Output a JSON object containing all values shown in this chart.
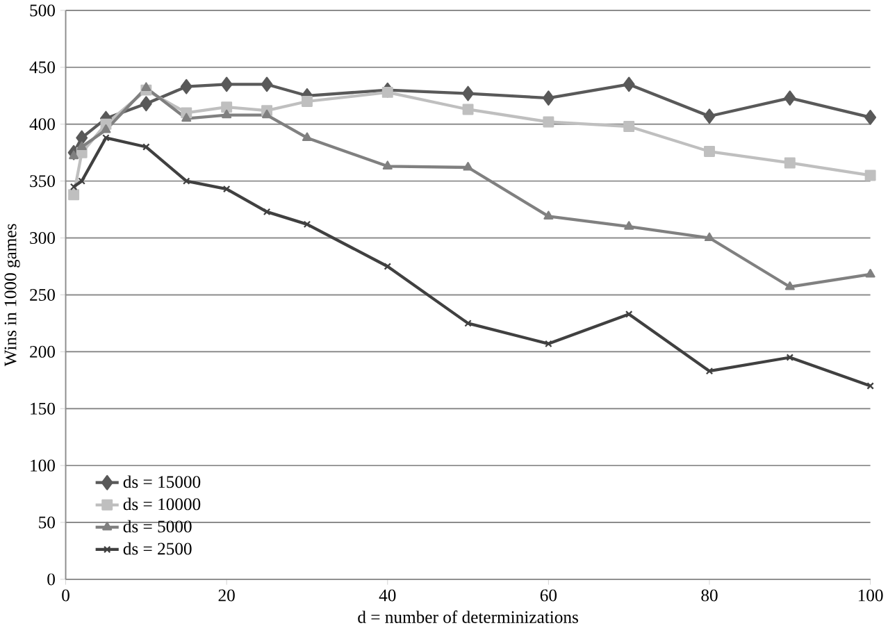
{
  "chart_data": {
    "type": "line",
    "xlabel": "d = number of determinizations",
    "ylabel": "Wins in 1000 games",
    "x": [
      1,
      2,
      5,
      10,
      15,
      20,
      25,
      30,
      40,
      50,
      60,
      70,
      80,
      90,
      100
    ],
    "series": [
      {
        "name": "ds = 15000",
        "color": "#595959",
        "marker": "diamond",
        "values": [
          375,
          388,
          405,
          418,
          433,
          435,
          435,
          425,
          430,
          427,
          423,
          435,
          407,
          423,
          406
        ]
      },
      {
        "name": "ds = 10000",
        "color": "#bfbfbf",
        "marker": "square",
        "values": [
          338,
          375,
          400,
          430,
          410,
          415,
          412,
          420,
          428,
          413,
          402,
          398,
          376,
          366,
          355
        ]
      },
      {
        "name": "ds = 5000",
        "color": "#808080",
        "marker": "triangle",
        "values": [
          372,
          380,
          395,
          432,
          405,
          408,
          408,
          388,
          363,
          362,
          319,
          310,
          300,
          257,
          268
        ]
      },
      {
        "name": "ds = 2500",
        "color": "#404040",
        "marker": "cross",
        "values": [
          345,
          350,
          388,
          380,
          350,
          343,
          323,
          312,
          275,
          225,
          207,
          233,
          183,
          195,
          170
        ]
      }
    ],
    "xlim": [
      0,
      100
    ],
    "ylim": [
      0,
      500
    ],
    "xticks": [
      0,
      20,
      40,
      60,
      80,
      100
    ],
    "yticks": [
      0,
      50,
      100,
      150,
      200,
      250,
      300,
      350,
      400,
      450,
      500
    ],
    "grid": "y",
    "legend": "bottom left"
  }
}
